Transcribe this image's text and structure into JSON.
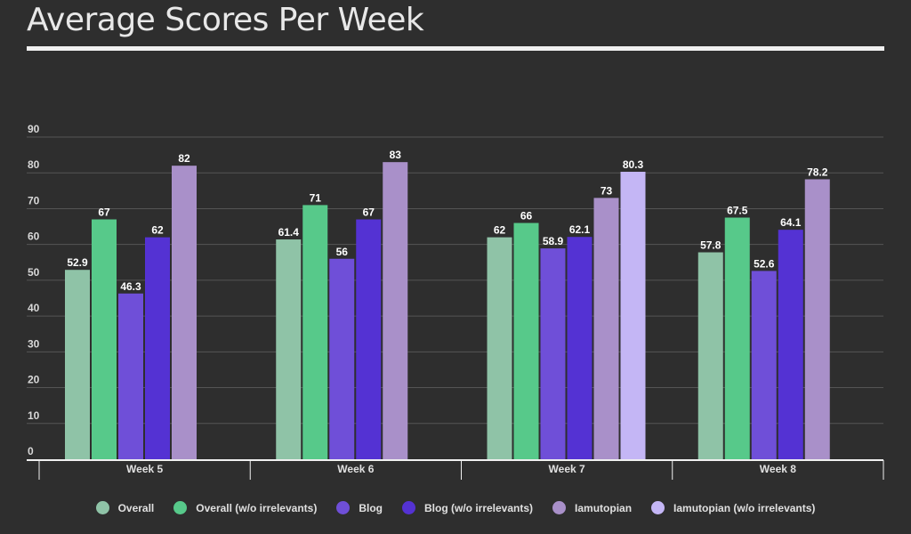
{
  "chart_data": {
    "type": "bar",
    "title": "Average Scores Per Week",
    "categories": [
      "Week 5",
      "Week 6",
      "Week 7",
      "Week 8"
    ],
    "ylim": [
      0,
      90
    ],
    "yticks": [
      0,
      10,
      20,
      30,
      40,
      50,
      60,
      70,
      80,
      90
    ],
    "grid": true,
    "legend_position": "bottom",
    "series": [
      {
        "name": "Overall",
        "color": "#8fc3a7",
        "values": [
          52.9,
          61.4,
          62,
          57.8
        ]
      },
      {
        "name": "Overall (w/o irrelevants)",
        "color": "#57c98a",
        "values": [
          67,
          71,
          66,
          67.5
        ]
      },
      {
        "name": "Blog",
        "color": "#6f4fd8",
        "values": [
          46.3,
          56,
          58.9,
          52.6
        ]
      },
      {
        "name": "Blog (w/o irrelevants)",
        "color": "#5432d3",
        "values": [
          62,
          67,
          62.1,
          64.1
        ]
      },
      {
        "name": "Iamutopian",
        "color": "#a990c9",
        "values": [
          82,
          83,
          73,
          78.2
        ]
      },
      {
        "name": "Iamutopian (w/o irrelevants)",
        "color": "#c4b6f5",
        "values": [
          null,
          null,
          80.3,
          null
        ]
      }
    ]
  }
}
